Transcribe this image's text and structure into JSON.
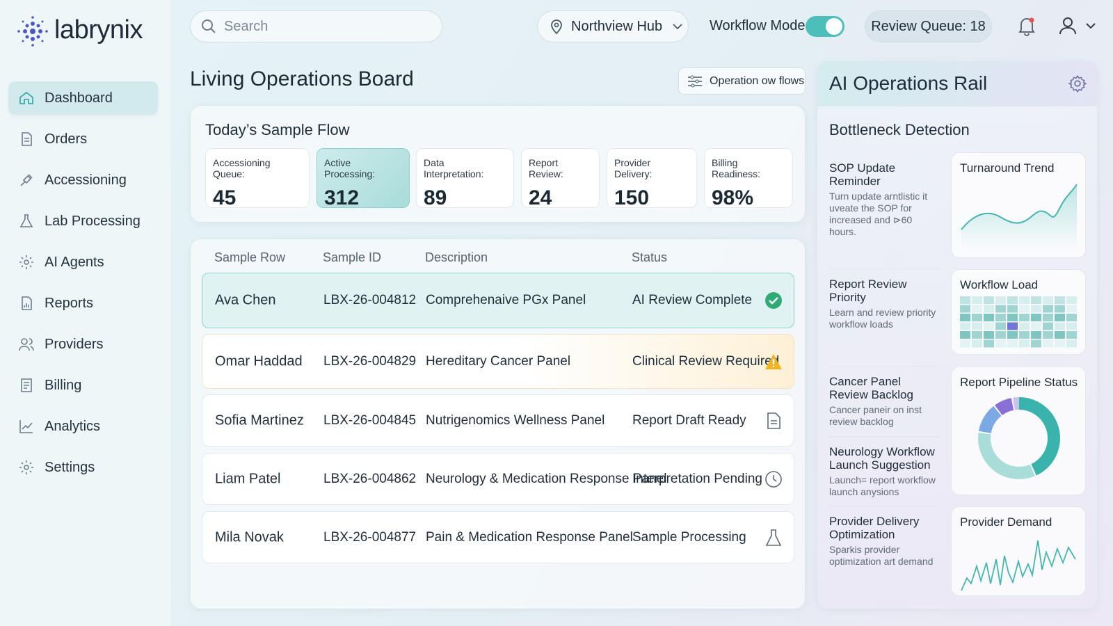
{
  "header": {
    "brand": "labrynix",
    "search": "Search",
    "location": "Northview Hub",
    "mode_label": "Workflow Mode",
    "review_queue": "Review Queue: 18"
  },
  "sidebar": {
    "nav": [
      "Dashboard",
      "Orders",
      "Accessioning",
      "Lab Processing",
      "AI Agents",
      "Reports",
      "Providers",
      "Billing",
      "Analytics",
      "Settings"
    ]
  },
  "main": {
    "title": "Living Operations Board",
    "button": "Operation ow flows",
    "flow": {
      "title": "Today’s Sample Flow",
      "stats": [
        {
          "label": "Accessioning Queue:",
          "value": "45"
        },
        {
          "label": "Active Processing:",
          "value": "312"
        },
        {
          "label": "Data Interpretation:",
          "value": "89"
        },
        {
          "label": "Report Review:",
          "value": "24"
        },
        {
          "label": "Provider Delivery:",
          "value": "150"
        },
        {
          "label": "Billing Readiness:",
          "value": "98%"
        }
      ]
    },
    "table": {
      "columns": [
        "Sample Row",
        "Sample ID",
        "Description",
        "Status"
      ],
      "rows": [
        [
          "Ava Chen",
          "LBX-26-004812",
          "Comprehenaive PGx Panel",
          "AI Review Complete"
        ],
        [
          "Omar Haddad",
          "LBX-26-004829",
          "Hereditary Cancer Panel",
          "Clinical Review Required"
        ],
        [
          "Sofia Martinez",
          "LBX-26-004845",
          "Nutrigenomics Wellness Panel",
          "Report Draft Ready"
        ],
        [
          "Liam Patel",
          "LBX-26-004862",
          "Neurology & Medication Response Panel",
          "Interpretation Pending"
        ],
        [
          "Mila Novak",
          "LBX-26-004877",
          "Pain & Medication Response Panel",
          "Sample Processing"
        ]
      ]
    }
  },
  "rail": {
    "title": "AI Operations Rail",
    "section": "Bottleneck Detection",
    "items": [
      {
        "title": "SOP Update Reminder",
        "text": "Turn update arntlistic it uveate the SOP for increased and ⊳60 hours."
      },
      {
        "title": "Report Review Priority",
        "text": "Learn and review priority workflow loads"
      },
      {
        "title": "Cancer Panel Review Backlog",
        "text": "Cancer paneir on inst review backlog"
      },
      {
        "title": "Neurology Workflow Launch Suggestion",
        "text": "Launch= report workflow launch anysions"
      },
      {
        "title": "Provider Delivery Optimization",
        "text": "Sparkis provider optimization art demand"
      }
    ],
    "cards": [
      "Turnaround Trend",
      "Workflow Load",
      "Report Pipeline Status",
      "Provider Demand"
    ]
  }
}
